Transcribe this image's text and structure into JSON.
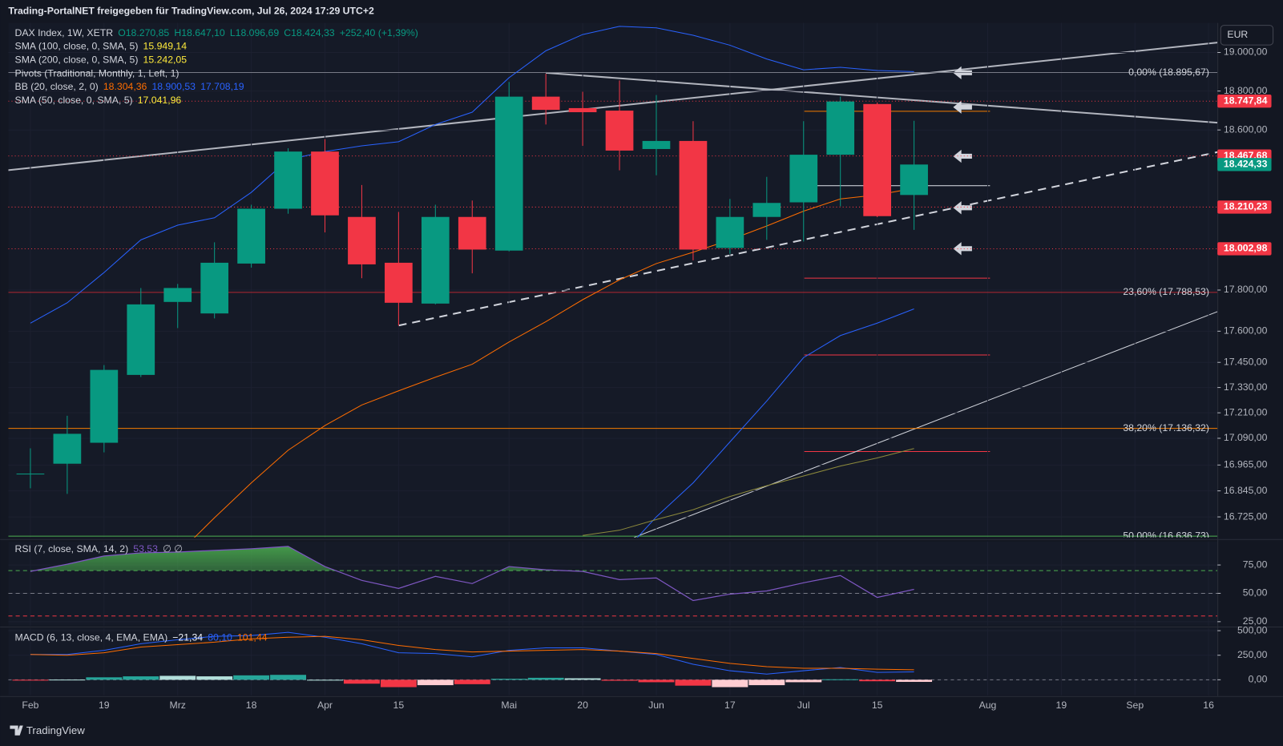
{
  "header": "Trading-PortalNET freigegeben für TradingView.com, Jul 26, 2024 17:29 UTC+2",
  "currency": "EUR",
  "footer": "TradingView",
  "chart_data": [
    {
      "type": "candlestick",
      "log": true,
      "ylim": [
        16631,
        19155
      ],
      "xlim": [
        -0.6,
        32.24
      ],
      "yticks": [
        {
          "value": 19000,
          "label": "19.000,00"
        },
        {
          "value": 18800,
          "label": "18.800,00"
        },
        {
          "value": 18600,
          "label": "18.600,00"
        },
        {
          "value": 17800,
          "label": "17.800,00"
        },
        {
          "value": 17600,
          "label": "17.600,00"
        },
        {
          "value": 17450,
          "label": "17.450,00"
        },
        {
          "value": 17330,
          "label": "17.330,00"
        },
        {
          "value": 17210,
          "label": "17.210,00"
        },
        {
          "value": 17090,
          "label": "17.090,00"
        },
        {
          "value": 16965,
          "label": "16.965,00"
        },
        {
          "value": 16845,
          "label": "16.845,00"
        },
        {
          "value": 16725,
          "label": "16.725,00"
        }
      ],
      "xticks": [
        {
          "value": 0,
          "label": "Feb"
        },
        {
          "value": 2,
          "label": "19"
        },
        {
          "value": 4,
          "label": "Mrz"
        },
        {
          "value": 6,
          "label": "18"
        },
        {
          "value": 8,
          "label": "Apr"
        },
        {
          "value": 10,
          "label": "15"
        },
        {
          "value": 13,
          "label": "Mai"
        },
        {
          "value": 15,
          "label": "20"
        },
        {
          "value": 17,
          "label": "Jun"
        },
        {
          "value": 19,
          "label": "17"
        },
        {
          "value": 21,
          "label": "Jul"
        },
        {
          "value": 23,
          "label": "15"
        },
        {
          "value": 26,
          "label": "Aug"
        },
        {
          "value": 28,
          "label": "19"
        },
        {
          "value": 30,
          "label": "Sep"
        },
        {
          "value": 32,
          "label": "16"
        }
      ],
      "open": [
        16922,
        16971,
        17069,
        17390,
        17742,
        17686,
        17930,
        18202,
        18490,
        18161,
        17934,
        17734,
        18161,
        17994,
        18771,
        18712,
        18699,
        18503,
        18544,
        18007,
        18161,
        18234,
        18474,
        18733,
        18270.85
      ],
      "high": [
        17043,
        17196,
        17437,
        17810,
        17830,
        18035,
        18222,
        18507,
        18553,
        18321,
        18186,
        18222,
        18243,
        18847,
        18889,
        18796,
        18855,
        18779,
        18645,
        18251,
        18362,
        18645,
        18771,
        18741,
        18647.1
      ],
      "low": [
        16857,
        16831,
        17024,
        17380,
        17615,
        17662,
        17910,
        18177,
        18084,
        17858,
        17627,
        17730,
        17882,
        17990,
        18628,
        18519,
        18395,
        18370,
        17946,
        17978,
        18047,
        18039,
        18214,
        18160,
        18096.69
      ],
      "close": [
        16925,
        17111,
        17414,
        17730,
        17810,
        17934,
        18202,
        18490,
        18169,
        17926,
        17738,
        18161,
        17999,
        18771,
        18703,
        18691,
        18495,
        18544,
        17999,
        18161,
        18231,
        18474,
        18746,
        18165,
        18424.33
      ],
      "up_color": "#089981",
      "down_color": "#f23645",
      "overlays": [
        {
          "color": "#2962ff",
          "values": [
            17639,
            17738,
            17886,
            18047,
            18120,
            18157,
            18284,
            18449,
            18490,
            18519,
            18540,
            18628,
            18691,
            18869,
            19009,
            19094,
            19137,
            19129,
            19090,
            19038,
            18966,
            18910,
            18923,
            18906,
            18900.53
          ]
        },
        {
          "color": "#ff6d00",
          "values": [
            null,
            null,
            null,
            null,
            16555,
            16721,
            16882,
            17034,
            17150,
            17247,
            17314,
            17379,
            17441,
            17548,
            17646,
            17753,
            17850,
            17930,
            17986,
            18047,
            18116,
            18190,
            18251,
            18271,
            18304.36
          ]
        },
        {
          "color": "#2962ff",
          "values": [
            null,
            null,
            null,
            null,
            null,
            null,
            null,
            null,
            null,
            null,
            null,
            null,
            null,
            null,
            null,
            null,
            16542,
            16725,
            16882,
            17073,
            17266,
            17473,
            17579,
            17639,
            17708.19
          ]
        },
        {
          "color": "#8d8a3c",
          "values": [
            null,
            null,
            null,
            null,
            null,
            null,
            null,
            null,
            null,
            null,
            null,
            null,
            null,
            null,
            null,
            16640,
            16664,
            16713,
            16758,
            16819,
            16869,
            16914,
            16960,
            16998,
            17041.96
          ]
        }
      ],
      "fib_levels": [
        {
          "value": 18895.67,
          "label": "0,00% (18.895,67)",
          "color": "#787b86"
        },
        {
          "value": 17788.53,
          "label": "23,60% (17.788,53)",
          "color": "#b22833"
        },
        {
          "value": 17136.32,
          "label": "38,20% (17.136,32)",
          "color": "#f57c00"
        },
        {
          "value": 16636.73,
          "label": "50,00% (16.636,73)",
          "color": "#4caf50"
        }
      ],
      "price_labels": [
        {
          "value": 18747.84,
          "label": "18.747,84",
          "color": "#f23645",
          "dotted": true
        },
        {
          "value": 18467.68,
          "label": "18.467,68",
          "color": "#f23645",
          "dotted": true
        },
        {
          "value": 18424.33,
          "label": "18.424,33",
          "color": "#089981",
          "dotted": false
        },
        {
          "value": 18210.23,
          "label": "18.210,23",
          "color": "#f23645",
          "dotted": true
        },
        {
          "value": 18002.98,
          "label": "18.002,98",
          "color": "#f23645",
          "dotted": true
        }
      ],
      "legend": [
        {
          "name": "DAX Index, 1W, XETR",
          "values": [
            {
              "text": "O18.270,85",
              "color": "#089981"
            },
            {
              "text": "H18.647,10",
              "color": "#089981"
            },
            {
              "text": "L18.096,69",
              "color": "#089981"
            },
            {
              "text": "C18.424,33",
              "color": "#089981"
            },
            {
              "text": "+252,40 (+1,39%)",
              "color": "#089981"
            }
          ]
        },
        {
          "name": "SMA (100, close, 0, SMA, 5)",
          "values": [
            {
              "text": "15.949,14",
              "color": "#ffeb3b"
            }
          ]
        },
        {
          "name": "SMA (200, close, 0, SMA, 5)",
          "values": [
            {
              "text": "15.242,05",
              "color": "#ffeb3b"
            }
          ]
        },
        {
          "name": "Pivots (Traditional, Monthly, 1, Left, 1)"
        },
        {
          "name": "BB (20, close, 2, 0)",
          "values": [
            {
              "text": "18.304,36",
              "color": "#ff6d00"
            },
            {
              "text": "18.900,53",
              "color": "#2962ff"
            },
            {
              "text": "17.708,19",
              "color": "#2962ff"
            }
          ]
        },
        {
          "name": "SMA (50, close, 0, SMA, 5)",
          "values": [
            {
              "text": "17.041,96",
              "color": "#ffeb3b"
            }
          ]
        }
      ]
    },
    {
      "type": "line",
      "ylim": [
        21.4,
        95.7
      ],
      "yticks": [
        {
          "value": 75,
          "label": "75,00"
        },
        {
          "value": 50,
          "label": "50,00"
        },
        {
          "value": 25,
          "label": "25,00"
        }
      ],
      "series": [
        {
          "color": "#7e57c2",
          "values": [
            69.3,
            75.7,
            82.9,
            85.7,
            86.4,
            87.9,
            89.3,
            91.4,
            73.6,
            61.4,
            54.3,
            65.0,
            58.6,
            73.6,
            70.7,
            69.3,
            62.1,
            63.6,
            43.6,
            49.3,
            52.1,
            59.3,
            65.7,
            46.4,
            53.53
          ]
        }
      ],
      "hlines": [
        {
          "value": 70,
          "color": "#4caf50"
        },
        {
          "value": 50,
          "color": "#787b86"
        },
        {
          "value": 30,
          "color": "#f23645"
        }
      ],
      "fill_above": 70,
      "fill_color": "#4caf50",
      "legend": [
        {
          "name": "RSI (7, close, SMA, 14, 2)",
          "values": [
            {
              "text": "53,53",
              "color": "#7e57c2"
            },
            {
              "text": "∅ ∅",
              "color": "#b2b5be"
            }
          ]
        }
      ]
    },
    {
      "type": "macd",
      "ylim": [
        -158,
        525
      ],
      "yticks": [
        {
          "value": 500,
          "label": "500,00"
        },
        {
          "value": 250,
          "label": "250,00"
        },
        {
          "value": 0,
          "label": "0,00"
        }
      ],
      "series": [
        {
          "kind": "bar",
          "values": [
            -4,
            2,
            25,
            35,
            40,
            35,
            45,
            50,
            -5,
            -40,
            -75,
            -55,
            -45,
            10,
            20,
            15,
            -10,
            -25,
            -60,
            -75,
            -55,
            -25,
            5,
            -15,
            -21.34
          ],
          "colors": [
            "#f23645",
            "#b2dfdb",
            "#26a69a",
            "#26a69a",
            "#b2dfdb",
            "#b2dfdb",
            "#26a69a",
            "#26a69a",
            "#b2dfdb",
            "#f23645",
            "#f23645",
            "#ffcdd2",
            "#f23645",
            "#26a69a",
            "#26a69a",
            "#b2dfdb",
            "#f23645",
            "#f23645",
            "#f23645",
            "#ffcdd2",
            "#ffcdd2",
            "#ffcdd2",
            "#26a69a",
            "#f23645",
            "#ffcdd2"
          ]
        },
        {
          "kind": "line",
          "color": "#2962ff",
          "values": [
            258,
            258,
            300,
            367,
            408,
            442,
            450,
            483,
            433,
            367,
            275,
            267,
            233,
            300,
            325,
            325,
            292,
            258,
            158,
            92,
            58,
            92,
            125,
            75,
            80.1
          ]
        },
        {
          "kind": "line",
          "color": "#ff6d00",
          "values": [
            258,
            250,
            275,
            333,
            358,
            383,
            417,
            433,
            442,
            408,
            350,
            308,
            283,
            292,
            300,
            308,
            292,
            267,
            217,
            167,
            133,
            117,
            117,
            108,
            101.44
          ]
        }
      ],
      "zero_line": true,
      "legend": [
        {
          "name": "MACD (6, 13, close, 4, EMA, EMA)",
          "values": [
            {
              "text": "−21,34",
              "color": "#f0f3fa"
            },
            {
              "text": "80,10",
              "color": "#2962ff"
            },
            {
              "text": "101,44",
              "color": "#ff6d00"
            }
          ]
        }
      ]
    }
  ]
}
